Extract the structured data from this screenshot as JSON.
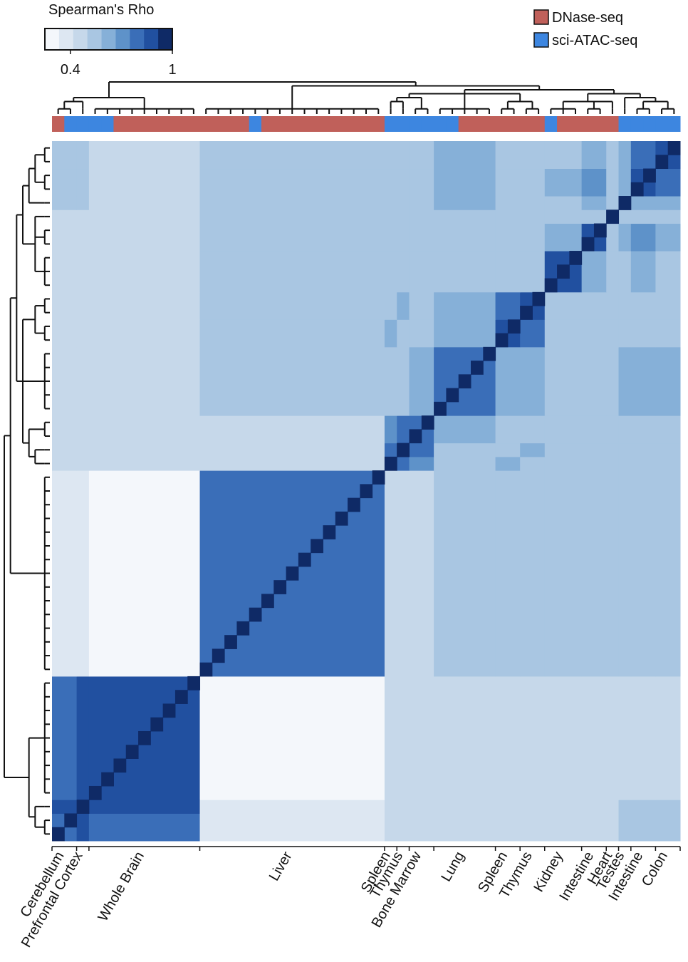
{
  "chart_data": {
    "type": "heatmap",
    "colorbar_title": "Spearman's Rho",
    "clim": [
      0.25,
      1.0
    ],
    "colorbar_ticks": [
      0.4,
      1
    ],
    "colors": [
      "#f4f7fb",
      "#dde7f2",
      "#c6d8ea",
      "#a9c6e2",
      "#86b0d8",
      "#5e92c9",
      "#3a6eb8",
      "#2150a0",
      "#0f2a66"
    ],
    "legend": [
      {
        "name": "DNase-seq",
        "color": "#c0605a"
      },
      {
        "name": "sci-ATAC-seq",
        "color": "#3d86e0"
      }
    ],
    "groups": [
      {
        "label": "Cerebellum",
        "size": 2
      },
      {
        "label": "Prefrontal Cortex",
        "size": 1
      },
      {
        "label": "Whole Brain",
        "size": 9
      },
      {
        "label": "Liver",
        "size": 15
      },
      {
        "label": "Spleen",
        "size": 1
      },
      {
        "label": "Thymus",
        "size": 1
      },
      {
        "label": "Bone Marrow",
        "size": 2
      },
      {
        "label": "Lung",
        "size": 5
      },
      {
        "label": "Spleen",
        "size": 2
      },
      {
        "label": "Thymus",
        "size": 2
      },
      {
        "label": "Kidney",
        "size": 3
      },
      {
        "label": "Intestine",
        "size": 2
      },
      {
        "label": "Heart",
        "size": 1
      },
      {
        "label": "Testes",
        "size": 1
      },
      {
        "label": "Intestine",
        "size": 2
      },
      {
        "label": "Colon",
        "size": 2
      }
    ],
    "column_assay": [
      0,
      1,
      1,
      1,
      1,
      0,
      0,
      0,
      0,
      0,
      0,
      0,
      0,
      0,
      0,
      0,
      1,
      0,
      0,
      0,
      0,
      0,
      0,
      0,
      0,
      0,
      0,
      1,
      1,
      1,
      1,
      1,
      1,
      0,
      0,
      0,
      0,
      0,
      0,
      0,
      1,
      0,
      0,
      0,
      0,
      0,
      1,
      1,
      1,
      1,
      1
    ],
    "diagonal": 1,
    "matrix": [
      [
        0.8,
        0.85,
        0.75,
        0.35,
        0.45,
        0.45,
        0.45,
        0.45,
        0.45,
        0.45,
        0.45,
        0.45,
        0.45,
        0.5,
        0.5,
        0.5
      ],
      [
        0.85,
        0.8,
        0.85,
        0.38,
        0.45,
        0.45,
        0.45,
        0.45,
        0.45,
        0.45,
        0.45,
        0.45,
        0.45,
        0.5,
        0.5,
        0.5
      ],
      [
        0.75,
        0.85,
        0.85,
        0.33,
        0.42,
        0.42,
        0.42,
        0.42,
        0.42,
        0.42,
        0.42,
        0.42,
        0.42,
        0.45,
        0.45,
        0.45
      ],
      [
        0.35,
        0.38,
        0.33,
        0.8,
        0.45,
        0.45,
        0.45,
        0.5,
        0.5,
        0.5,
        0.5,
        0.5,
        0.5,
        0.5,
        0.5,
        0.5
      ],
      [
        0.45,
        0.45,
        0.42,
        0.45,
        1,
        0.75,
        0.7,
        0.55,
        0.6,
        0.55,
        0.5,
        0.5,
        0.5,
        0.55,
        0.5,
        0.5
      ],
      [
        0.45,
        0.45,
        0.42,
        0.45,
        0.75,
        1,
        0.75,
        0.55,
        0.55,
        0.6,
        0.5,
        0.5,
        0.5,
        0.55,
        0.5,
        0.5
      ],
      [
        0.45,
        0.45,
        0.42,
        0.45,
        0.7,
        0.75,
        0.8,
        0.6,
        0.55,
        0.55,
        0.5,
        0.5,
        0.5,
        0.55,
        0.55,
        0.55
      ],
      [
        0.45,
        0.45,
        0.42,
        0.5,
        0.55,
        0.55,
        0.6,
        0.8,
        0.6,
        0.6,
        0.55,
        0.55,
        0.55,
        0.6,
        0.6,
        0.6
      ],
      [
        0.45,
        0.45,
        0.42,
        0.5,
        0.6,
        0.55,
        0.55,
        0.6,
        0.85,
        0.75,
        0.55,
        0.55,
        0.55,
        0.55,
        0.55,
        0.55
      ],
      [
        0.45,
        0.45,
        0.42,
        0.5,
        0.55,
        0.6,
        0.55,
        0.6,
        0.75,
        0.85,
        0.55,
        0.55,
        0.55,
        0.55,
        0.55,
        0.55
      ],
      [
        0.45,
        0.45,
        0.42,
        0.5,
        0.5,
        0.5,
        0.5,
        0.55,
        0.55,
        0.55,
        0.85,
        0.6,
        0.55,
        0.55,
        0.6,
        0.55
      ],
      [
        0.45,
        0.45,
        0.42,
        0.5,
        0.5,
        0.5,
        0.5,
        0.55,
        0.55,
        0.55,
        0.6,
        0.85,
        0.55,
        0.6,
        0.7,
        0.65
      ],
      [
        0.45,
        0.45,
        0.42,
        0.5,
        0.5,
        0.5,
        0.5,
        0.55,
        0.55,
        0.55,
        0.55,
        0.55,
        1,
        0.55,
        0.55,
        0.55
      ],
      [
        0.5,
        0.5,
        0.45,
        0.5,
        0.55,
        0.55,
        0.55,
        0.6,
        0.55,
        0.55,
        0.55,
        0.6,
        0.55,
        1,
        0.65,
        0.6
      ],
      [
        0.5,
        0.5,
        0.45,
        0.5,
        0.5,
        0.5,
        0.55,
        0.6,
        0.55,
        0.55,
        0.6,
        0.7,
        0.55,
        0.65,
        0.85,
        0.8
      ],
      [
        0.5,
        0.5,
        0.45,
        0.5,
        0.5,
        0.5,
        0.55,
        0.6,
        0.55,
        0.55,
        0.55,
        0.65,
        0.55,
        0.6,
        0.8,
        0.85
      ]
    ]
  }
}
